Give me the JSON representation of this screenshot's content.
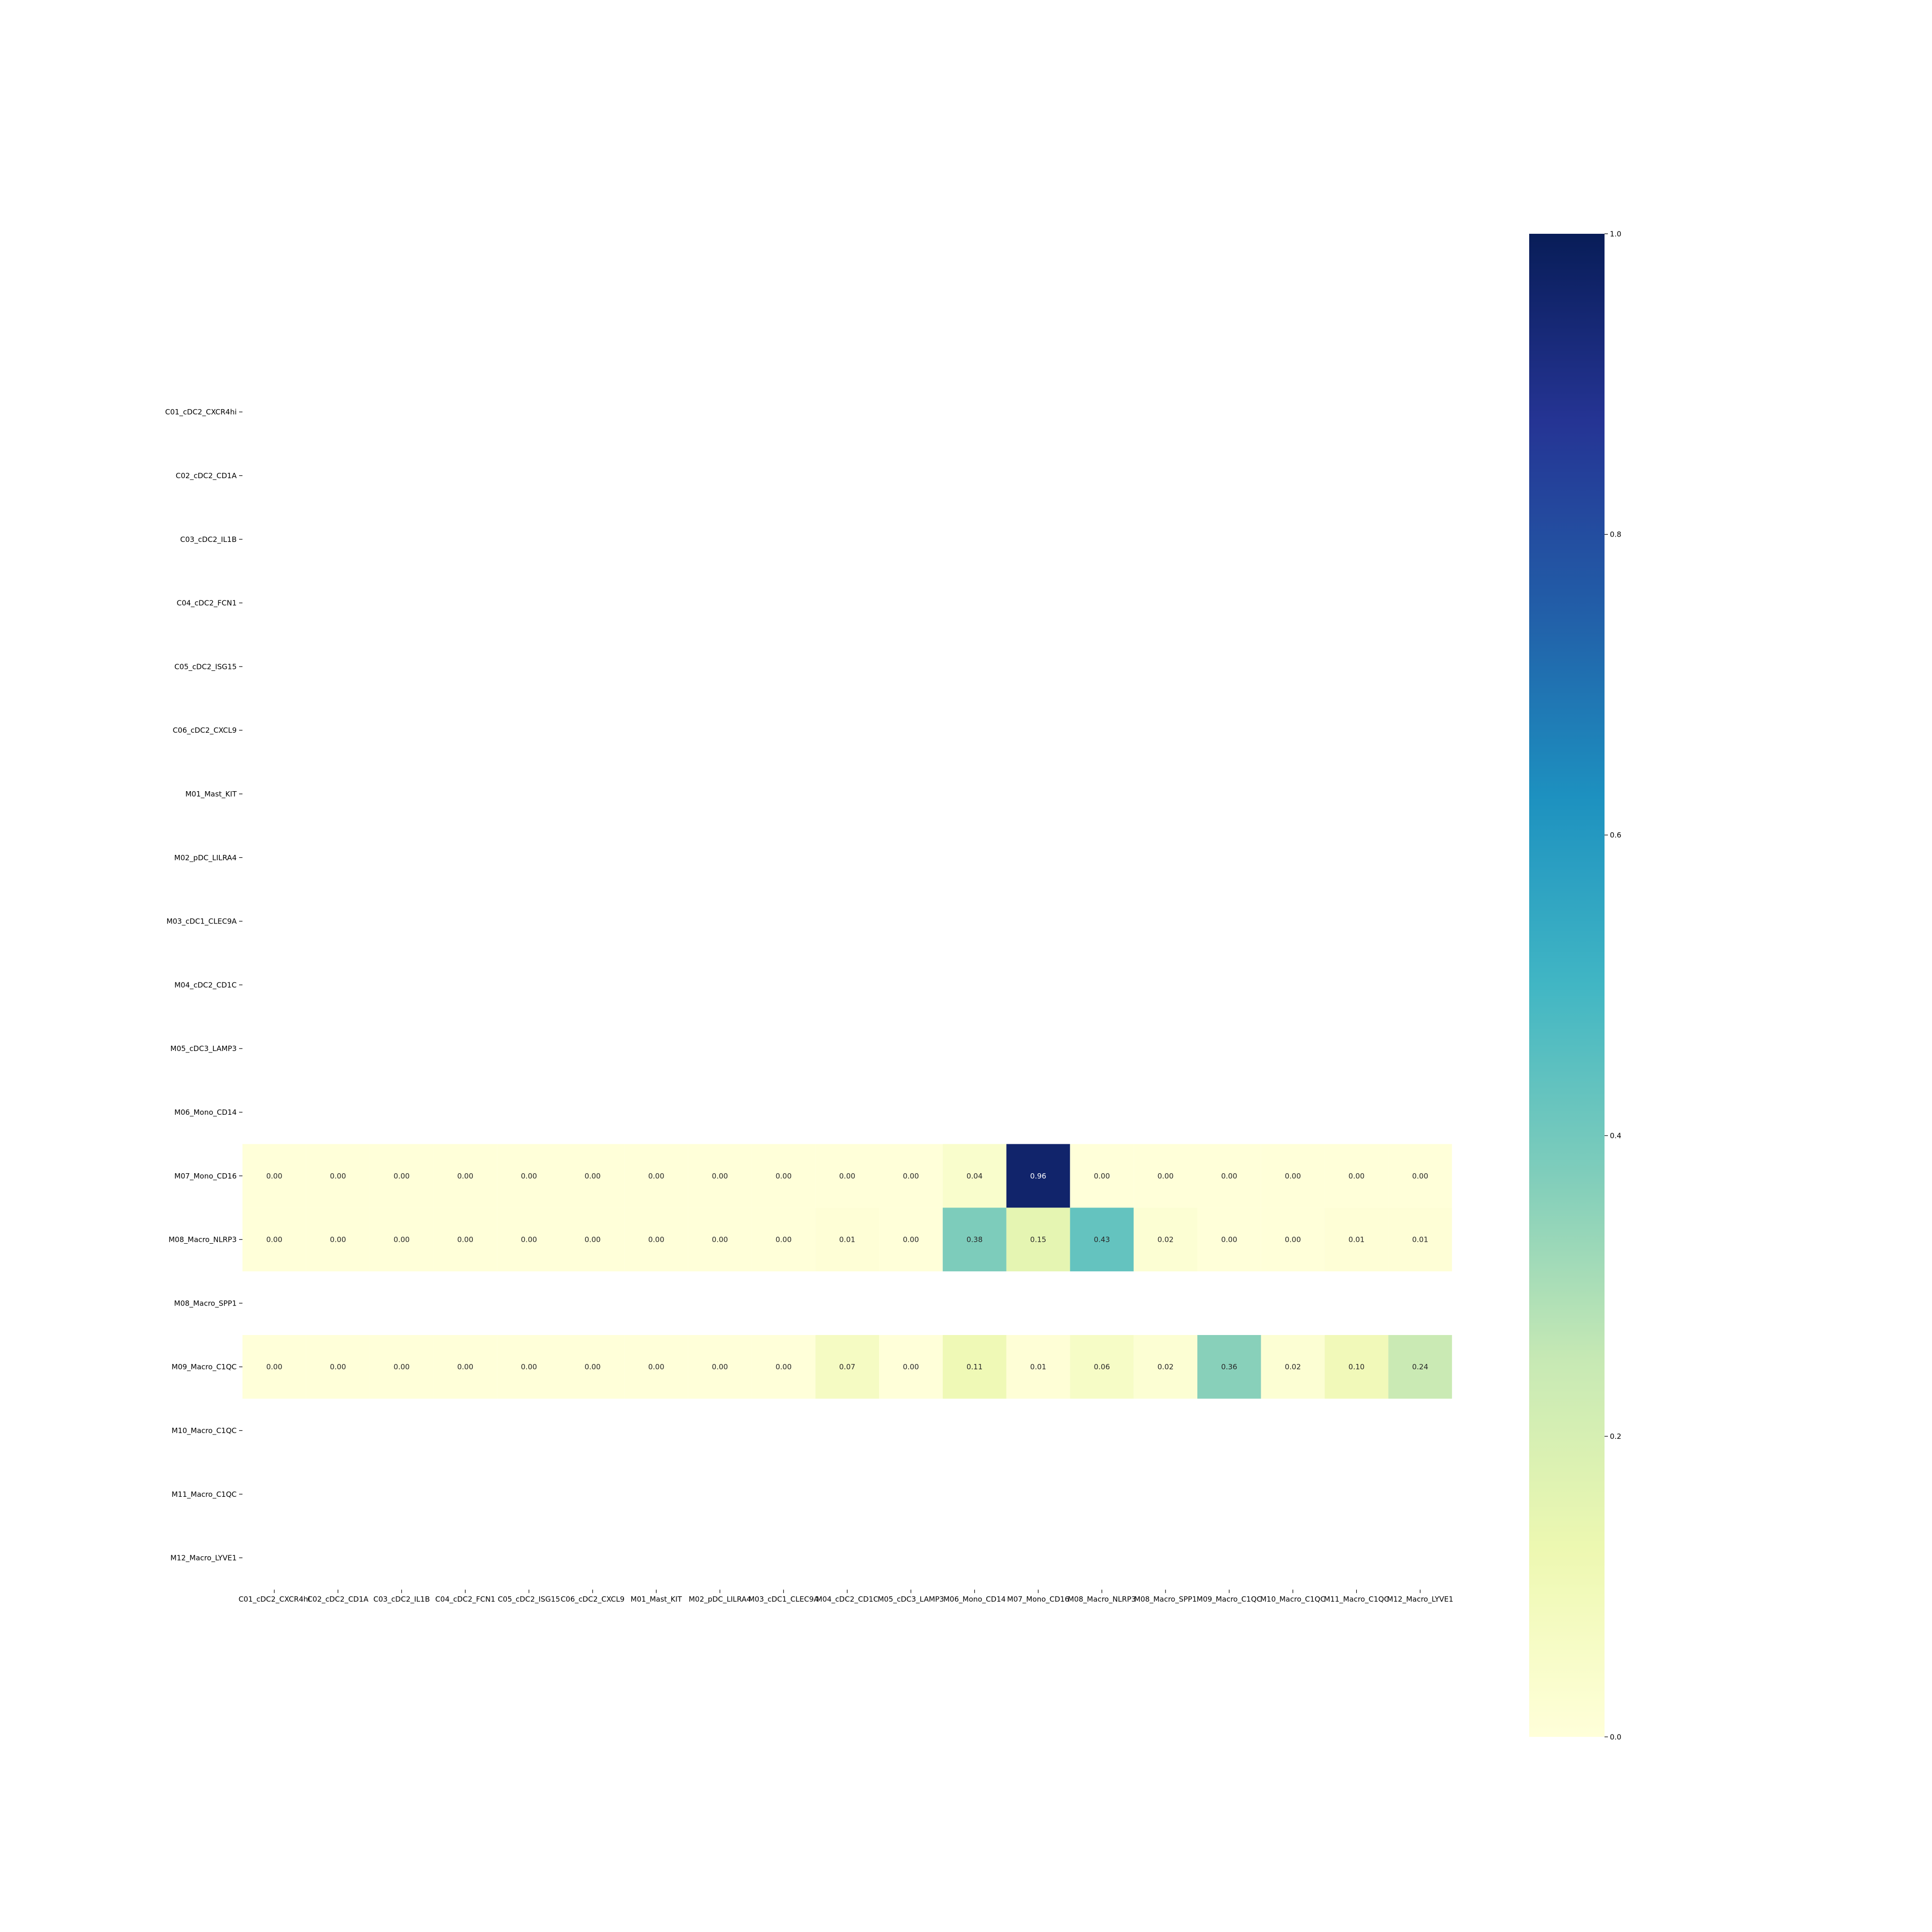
{
  "chart_data": {
    "type": "heatmap",
    "title": "",
    "xlabel": "",
    "ylabel": "",
    "rows": [
      "C01_cDC2_CXCR4hi",
      "C02_cDC2_CD1A",
      "C03_cDC2_IL1B",
      "C04_cDC2_FCN1",
      "C05_cDC2_ISG15",
      "C06_cDC2_CXCL9",
      "M01_Mast_KIT",
      "M02_pDC_LILRA4",
      "M03_cDC1_CLEC9A",
      "M04_cDC2_CD1C",
      "M05_cDC3_LAMP3",
      "M06_Mono_CD14",
      "M07_Mono_CD16",
      "M08_Macro_NLRP3",
      "M08_Macro_SPP1",
      "M09_Macro_C1QC",
      "M10_Macro_C1QC",
      "M11_Macro_C1QC",
      "M12_Macro_LYVE1"
    ],
    "columns": [
      "C01_cDC2_CXCR4hi",
      "C02_cDC2_CD1A",
      "C03_cDC2_IL1B",
      "C04_cDC2_FCN1",
      "C05_cDC2_ISG15",
      "C06_cDC2_CXCL9",
      "M01_Mast_KIT",
      "M02_pDC_LILRA4",
      "M03_cDC1_CLEC9A",
      "M04_cDC2_CD1C",
      "M05_cDC3_LAMP3",
      "M06_Mono_CD14",
      "M07_Mono_CD16",
      "M08_Macro_NLRP3",
      "M08_Macro_SPP1",
      "M09_Macro_C1QC",
      "M10_Macro_C1QC",
      "M11_Macro_C1QC",
      "M12_Macro_LYVE1"
    ],
    "values": [
      [
        null,
        null,
        null,
        null,
        null,
        null,
        null,
        null,
        null,
        null,
        null,
        null,
        null,
        null,
        null,
        null,
        null,
        null,
        null
      ],
      [
        null,
        null,
        null,
        null,
        null,
        null,
        null,
        null,
        null,
        null,
        null,
        null,
        null,
        null,
        null,
        null,
        null,
        null,
        null
      ],
      [
        null,
        null,
        null,
        null,
        null,
        null,
        null,
        null,
        null,
        null,
        null,
        null,
        null,
        null,
        null,
        null,
        null,
        null,
        null
      ],
      [
        null,
        null,
        null,
        null,
        null,
        null,
        null,
        null,
        null,
        null,
        null,
        null,
        null,
        null,
        null,
        null,
        null,
        null,
        null
      ],
      [
        null,
        null,
        null,
        null,
        null,
        null,
        null,
        null,
        null,
        null,
        null,
        null,
        null,
        null,
        null,
        null,
        null,
        null,
        null
      ],
      [
        null,
        null,
        null,
        null,
        null,
        null,
        null,
        null,
        null,
        null,
        null,
        null,
        null,
        null,
        null,
        null,
        null,
        null,
        null
      ],
      [
        null,
        null,
        null,
        null,
        null,
        null,
        null,
        null,
        null,
        null,
        null,
        null,
        null,
        null,
        null,
        null,
        null,
        null,
        null
      ],
      [
        null,
        null,
        null,
        null,
        null,
        null,
        null,
        null,
        null,
        null,
        null,
        null,
        null,
        null,
        null,
        null,
        null,
        null,
        null
      ],
      [
        null,
        null,
        null,
        null,
        null,
        null,
        null,
        null,
        null,
        null,
        null,
        null,
        null,
        null,
        null,
        null,
        null,
        null,
        null
      ],
      [
        null,
        null,
        null,
        null,
        null,
        null,
        null,
        null,
        null,
        null,
        null,
        null,
        null,
        null,
        null,
        null,
        null,
        null,
        null
      ],
      [
        null,
        null,
        null,
        null,
        null,
        null,
        null,
        null,
        null,
        null,
        null,
        null,
        null,
        null,
        null,
        null,
        null,
        null,
        null
      ],
      [
        null,
        null,
        null,
        null,
        null,
        null,
        null,
        null,
        null,
        null,
        null,
        null,
        null,
        null,
        null,
        null,
        null,
        null,
        null
      ],
      [
        0.0,
        0.0,
        0.0,
        0.0,
        0.0,
        0.0,
        0.0,
        0.0,
        0.0,
        0.0,
        0.0,
        0.04,
        0.96,
        0.0,
        0.0,
        0.0,
        0.0,
        0.0,
        0.0
      ],
      [
        0.0,
        0.0,
        0.0,
        0.0,
        0.0,
        0.0,
        0.0,
        0.0,
        0.0,
        0.01,
        0.0,
        0.38,
        0.15,
        0.43,
        0.02,
        0.0,
        0.0,
        0.01,
        0.01
      ],
      [
        null,
        null,
        null,
        null,
        null,
        null,
        null,
        null,
        null,
        null,
        null,
        null,
        null,
        null,
        null,
        null,
        null,
        null,
        null
      ],
      [
        0.0,
        0.0,
        0.0,
        0.0,
        0.0,
        0.0,
        0.0,
        0.0,
        0.0,
        0.07,
        0.0,
        0.11,
        0.01,
        0.06,
        0.02,
        0.36,
        0.02,
        0.1,
        0.24
      ],
      [
        null,
        null,
        null,
        null,
        null,
        null,
        null,
        null,
        null,
        null,
        null,
        null,
        null,
        null,
        null,
        null,
        null,
        null,
        null
      ],
      [
        null,
        null,
        null,
        null,
        null,
        null,
        null,
        null,
        null,
        null,
        null,
        null,
        null,
        null,
        null,
        null,
        null,
        null,
        null
      ],
      [
        null,
        null,
        null,
        null,
        null,
        null,
        null,
        null,
        null,
        null,
        null,
        null,
        null,
        null,
        null,
        null,
        null,
        null,
        null
      ]
    ],
    "value_format": "0.00",
    "colorbar": {
      "min": 0.0,
      "max": 1.0,
      "ticks": [
        "0.0",
        "0.2",
        "0.4",
        "0.6",
        "0.8",
        "1.0"
      ],
      "colormap": "YlGnBu",
      "stops": [
        "#ffffd9",
        "#edf8b1",
        "#c7e9b4",
        "#7fcdbb",
        "#41b6c4",
        "#1d91c0",
        "#225ea8",
        "#253494",
        "#081d58"
      ]
    },
    "grid": false
  }
}
